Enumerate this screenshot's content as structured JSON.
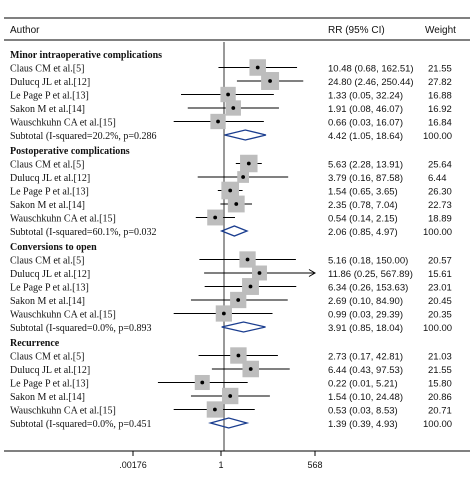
{
  "header": {
    "author": "Author",
    "rr": "RR (95% CI)",
    "weight": "Weight"
  },
  "axis": {
    "ticks": [
      ".00176",
      "1",
      "568"
    ]
  },
  "chart_data": {
    "type": "forest",
    "scale": "log",
    "xlim": [
      0.00176,
      568
    ],
    "reference_line": 1,
    "groups": [
      {
        "title": "Minor intraoperative  complications",
        "studies": [
          {
            "label": "Claus CM et al.[5]",
            "rr": 10.48,
            "lo": 0.68,
            "hi": 162.51,
            "ci_text": "10.48 (0.68, 162.51)",
            "weight": "21.55"
          },
          {
            "label": "Dulucq JL et al.[12]",
            "rr": 24.8,
            "lo": 2.46,
            "hi": 250.44,
            "ci_text": "24.80 (2.46, 250.44)",
            "weight": "27.82"
          },
          {
            "label": "Le Page P et al.[13]",
            "rr": 1.33,
            "lo": 0.05,
            "hi": 32.24,
            "ci_text": "1.33 (0.05, 32.24)",
            "weight": "16.88"
          },
          {
            "label": "Sakon M et al.[14]",
            "rr": 1.91,
            "lo": 0.08,
            "hi": 46.07,
            "ci_text": "1.91 (0.08, 46.07)",
            "weight": "16.92"
          },
          {
            "label": "Wauschkuhn CA et al.[15]",
            "rr": 0.66,
            "lo": 0.03,
            "hi": 16.07,
            "ci_text": "0.66 (0.03, 16.07)",
            "weight": "16.84"
          }
        ],
        "subtotal": {
          "label": "Subtotal (I-squared=20.2%, p=0.286",
          "rr": 4.42,
          "lo": 1.05,
          "hi": 18.64,
          "ci_text": "4.42 (1.05, 18.64)",
          "weight": "100.00"
        }
      },
      {
        "title": "Postoperative complications",
        "studies": [
          {
            "label": "Claus CM et al.[5]",
            "rr": 5.63,
            "lo": 2.28,
            "hi": 13.91,
            "ci_text": "5.63 (2.28, 13.91)",
            "weight": "25.64"
          },
          {
            "label": "Dulucq JL et al.[12]",
            "rr": 3.79,
            "lo": 0.16,
            "hi": 87.58,
            "ci_text": "3.79 (0.16, 87.58)",
            "weight": "6.44"
          },
          {
            "label": "Le Page P et al.[13]",
            "rr": 1.54,
            "lo": 0.65,
            "hi": 3.65,
            "ci_text": "1.54 (0.65, 3.65)",
            "weight": "26.30"
          },
          {
            "label": "Sakon M et al.[14]",
            "rr": 2.35,
            "lo": 0.78,
            "hi": 7.04,
            "ci_text": "2.35 (0.78, 7.04)",
            "weight": "22.73"
          },
          {
            "label": "Wauschkuhn CA et al.[15]",
            "rr": 0.54,
            "lo": 0.14,
            "hi": 2.15,
            "ci_text": "0.54 (0.14, 2.15)",
            "weight": "18.89"
          }
        ],
        "subtotal": {
          "label": "Subtotal (I-squared=60.1%, p=0.032",
          "rr": 2.06,
          "lo": 0.85,
          "hi": 4.97,
          "ci_text": "2.06 (0.85, 4.97)",
          "weight": "100.00"
        }
      },
      {
        "title": "Conversions to open",
        "studies": [
          {
            "label": "Claus CM et al.[5]",
            "rr": 5.16,
            "lo": 0.18,
            "hi": 150.0,
            "ci_text": "5.16 (0.18, 150.00)",
            "weight": "20.57"
          },
          {
            "label": "Dulucq JL et al.[12]",
            "rr": 11.86,
            "lo": 0.25,
            "hi": 567.89,
            "ci_text": "11.86 (0.25, 567.89)",
            "weight": "15.61",
            "arrow": true
          },
          {
            "label": "Le Page P et al.[13]",
            "rr": 6.34,
            "lo": 0.26,
            "hi": 153.63,
            "ci_text": "6.34 (0.26, 153.63)",
            "weight": "23.01"
          },
          {
            "label": "Sakon M et al.[14]",
            "rr": 2.69,
            "lo": 0.1,
            "hi": 84.9,
            "ci_text": "2.69 (0.10, 84.90)",
            "weight": "20.45"
          },
          {
            "label": "Wauschkuhn CA et al.[15]",
            "rr": 0.99,
            "lo": 0.03,
            "hi": 29.39,
            "ci_text": "0.99 (0.03, 29.39)",
            "weight": "20.35"
          }
        ],
        "subtotal": {
          "label": "Subtotal (I-squared=0.0%, p=0.893",
          "rr": 3.91,
          "lo": 0.85,
          "hi": 18.04,
          "ci_text": "3.91 (0.85, 18.04)",
          "weight": "100.00"
        }
      },
      {
        "title": "Recurrence",
        "studies": [
          {
            "label": "Claus CM et al.[5]",
            "rr": 2.73,
            "lo": 0.17,
            "hi": 42.81,
            "ci_text": "2.73 (0.17, 42.81)",
            "weight": "21.03"
          },
          {
            "label": "Dulucq JL et al.[12]",
            "rr": 6.44,
            "lo": 0.43,
            "hi": 97.53,
            "ci_text": "6.44 (0.43, 97.53)",
            "weight": "21.55"
          },
          {
            "label": "Le Page P et al.[13]",
            "rr": 0.22,
            "lo": 0.01,
            "hi": 5.21,
            "ci_text": "0.22 (0.01, 5.21)",
            "weight": "15.80"
          },
          {
            "label": "Sakon M et al.[14]",
            "rr": 1.54,
            "lo": 0.1,
            "hi": 24.48,
            "ci_text": "1.54 (0.10, 24.48)",
            "weight": "20.86"
          },
          {
            "label": "Wauschkuhn CA et al.[15]",
            "rr": 0.53,
            "lo": 0.03,
            "hi": 8.53,
            "ci_text": "0.53 (0.03, 8.53)",
            "weight": "20.71"
          }
        ],
        "subtotal": {
          "label": "Subtotal (I-squared=0.0%,  p=0.451",
          "rr": 1.39,
          "lo": 0.39,
          "hi": 4.93,
          "ci_text": "1.39 (0.39, 4.93)",
          "weight": "100.00"
        }
      }
    ]
  }
}
